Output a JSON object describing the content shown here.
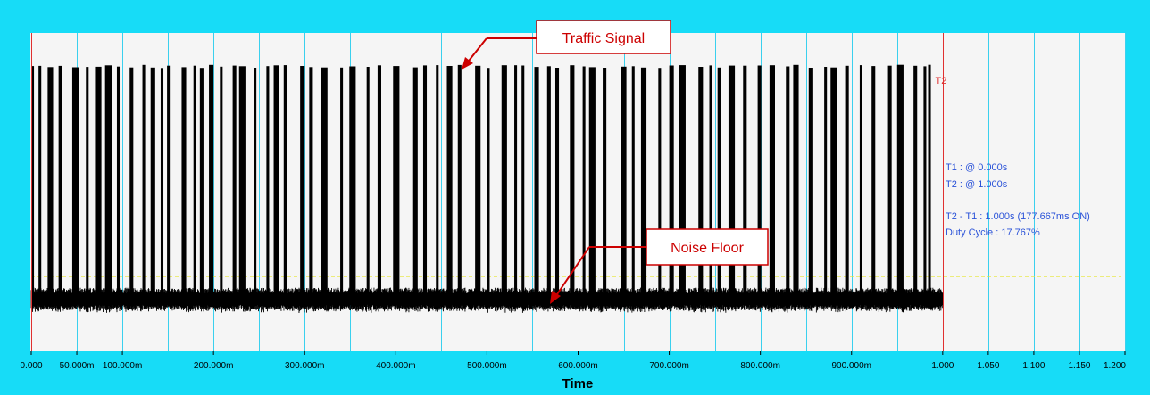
{
  "chart_data": {
    "type": "line",
    "xlabel": "Time",
    "xlim": [
      0.0,
      1.2
    ],
    "x_ticks": [
      {
        "value": 0.0,
        "label": "0.000"
      },
      {
        "value": 0.05,
        "label": "50.000m"
      },
      {
        "value": 0.1,
        "label": "100.000m"
      },
      {
        "value": 0.2,
        "label": "200.000m"
      },
      {
        "value": 0.3,
        "label": "300.000m"
      },
      {
        "value": 0.4,
        "label": "400.000m"
      },
      {
        "value": 0.5,
        "label": "500.000m"
      },
      {
        "value": 0.6,
        "label": "600.000m"
      },
      {
        "value": 0.7,
        "label": "700.000m"
      },
      {
        "value": 0.8,
        "label": "800.000m"
      },
      {
        "value": 0.9,
        "label": "900.000m"
      },
      {
        "value": 1.0,
        "label": "1.000"
      },
      {
        "value": 1.05,
        "label": "1.050"
      },
      {
        "value": 1.1,
        "label": "1.100"
      },
      {
        "value": 1.15,
        "label": "1.150"
      },
      {
        "value": 1.2,
        "label": "1.200"
      }
    ],
    "grid_x": [
      0.05,
      0.1,
      0.15,
      0.2,
      0.25,
      0.3,
      0.35,
      0.4,
      0.45,
      0.5,
      0.55,
      0.6,
      0.65,
      0.7,
      0.75,
      0.8,
      0.85,
      0.9,
      0.95,
      1.0,
      1.05,
      1.1,
      1.15,
      1.2
    ],
    "signal_level": 0.895,
    "noise_level": 0.16,
    "noise_amplitude": 0.04,
    "threshold_level": 0.235,
    "bursts": [
      [
        0.0,
        0.003
      ],
      [
        0.008,
        0.011
      ],
      [
        0.018,
        0.024
      ],
      [
        0.03,
        0.034
      ],
      [
        0.045,
        0.052
      ],
      [
        0.06,
        0.063
      ],
      [
        0.07,
        0.077
      ],
      [
        0.081,
        0.089
      ],
      [
        0.094,
        0.097
      ],
      [
        0.108,
        0.112
      ],
      [
        0.122,
        0.125
      ],
      [
        0.131,
        0.136
      ],
      [
        0.142,
        0.145
      ],
      [
        0.149,
        0.152
      ],
      [
        0.165,
        0.17
      ],
      [
        0.178,
        0.181
      ],
      [
        0.185,
        0.189
      ],
      [
        0.195,
        0.2
      ],
      [
        0.207,
        0.21
      ],
      [
        0.221,
        0.225
      ],
      [
        0.228,
        0.235
      ],
      [
        0.244,
        0.247
      ],
      [
        0.258,
        0.261
      ],
      [
        0.266,
        0.272
      ],
      [
        0.277,
        0.281
      ],
      [
        0.295,
        0.3
      ],
      [
        0.305,
        0.309
      ],
      [
        0.318,
        0.325
      ],
      [
        0.339,
        0.342
      ],
      [
        0.349,
        0.356
      ],
      [
        0.368,
        0.371
      ],
      [
        0.38,
        0.384
      ],
      [
        0.397,
        0.404
      ],
      [
        0.419,
        0.424
      ],
      [
        0.43,
        0.434
      ],
      [
        0.444,
        0.447
      ],
      [
        0.456,
        0.462
      ],
      [
        0.468,
        0.472
      ],
      [
        0.487,
        0.493
      ],
      [
        0.5,
        0.503
      ],
      [
        0.516,
        0.522
      ],
      [
        0.53,
        0.533
      ],
      [
        0.538,
        0.541
      ],
      [
        0.552,
        0.557
      ],
      [
        0.566,
        0.57
      ],
      [
        0.575,
        0.579
      ],
      [
        0.591,
        0.596
      ],
      [
        0.605,
        0.608
      ],
      [
        0.612,
        0.619
      ],
      [
        0.627,
        0.631
      ],
      [
        0.647,
        0.653
      ],
      [
        0.659,
        0.662
      ],
      [
        0.669,
        0.675
      ],
      [
        0.688,
        0.691
      ],
      [
        0.7,
        0.705
      ],
      [
        0.711,
        0.718
      ],
      [
        0.732,
        0.737
      ],
      [
        0.744,
        0.747
      ],
      [
        0.753,
        0.757
      ],
      [
        0.765,
        0.772
      ],
      [
        0.781,
        0.785
      ],
      [
        0.797,
        0.801
      ],
      [
        0.81,
        0.816
      ],
      [
        0.828,
        0.832
      ],
      [
        0.836,
        0.842
      ],
      [
        0.853,
        0.858
      ],
      [
        0.87,
        0.873
      ],
      [
        0.877,
        0.884
      ],
      [
        0.893,
        0.897
      ],
      [
        0.909,
        0.912
      ],
      [
        0.922,
        0.926
      ],
      [
        0.94,
        0.944
      ],
      [
        0.95,
        0.957
      ],
      [
        0.968,
        0.972
      ],
      [
        0.979,
        0.982
      ],
      [
        0.984,
        0.987
      ]
    ]
  },
  "markers": [
    {
      "name": "T1",
      "x": 0.0,
      "label": ""
    },
    {
      "name": "T2",
      "x": 1.0,
      "label": "T2"
    }
  ],
  "readout": {
    "t1": "T1 : @ 0.000s",
    "t2": "T2 : @ 1.000s",
    "delta": "T2 - T1 : 1.000s (177.667ms ON)",
    "duty": "Duty Cycle : 17.767%"
  },
  "callouts": {
    "traffic": "Traffic Signal",
    "noise": "Noise Floor"
  },
  "colors": {
    "frame": "#17dcf7",
    "plot_bg": "#f5f5f5",
    "trace": "#000000",
    "grid": "#3ad0ee",
    "marker": "#e03030",
    "threshold": "#e8e832",
    "readout": "#2a52d8",
    "callout": "#cc0000"
  }
}
